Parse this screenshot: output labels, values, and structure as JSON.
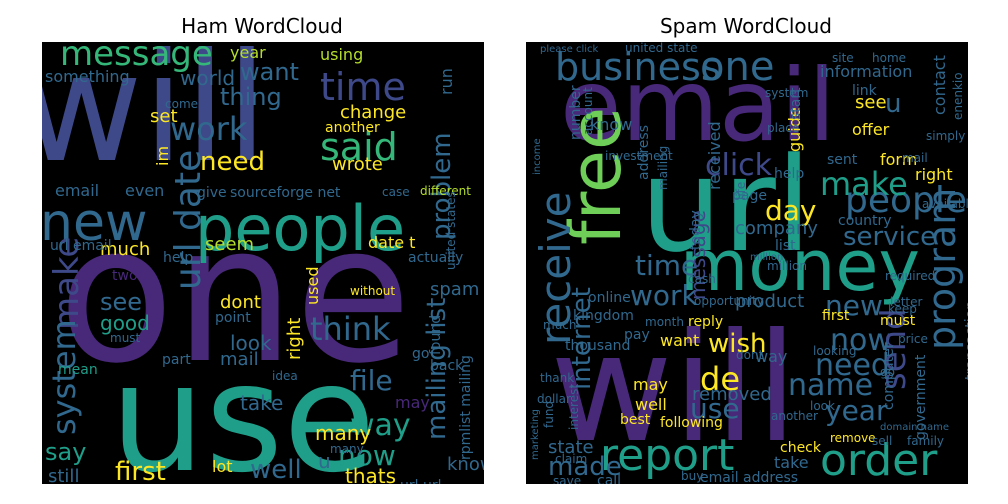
{
  "titles": {
    "ham": "Ham WordCloud",
    "spam": "Spam WordCloud"
  },
  "palette": [
    "#440154",
    "#482878",
    "#3e4989",
    "#31688e",
    "#26828e",
    "#1f9e89",
    "#35b779",
    "#6ece58",
    "#b5de2b",
    "#fde725"
  ],
  "ham_words": [
    "will",
    "one",
    "use",
    "new",
    "people",
    "message",
    "time",
    "said",
    "think",
    "work",
    "need",
    "problem",
    "mailing list",
    "url date",
    "make",
    "system",
    "first",
    "file",
    "way",
    "now",
    "see",
    "good",
    "say",
    "much",
    "seem",
    "dont",
    "look",
    "mail",
    "take",
    "well",
    "many",
    "thats",
    "still",
    "lot",
    "know",
    "spam",
    "right",
    "used",
    "want",
    "thing",
    "world",
    "year",
    "something",
    "set",
    "im",
    "wrote",
    "change",
    "another",
    "email",
    "even",
    "give",
    "sourceforge net",
    "url email",
    "date t",
    "point",
    "without",
    "must",
    "mean",
    "part",
    "url url",
    "help",
    "idea",
    "back",
    "found",
    "many",
    "actually",
    "case",
    "different",
    "united states",
    "rpmlist mailing",
    "two",
    "may",
    "u",
    "using",
    "run",
    "come",
    "go"
  ],
  "spam_words": [
    "email",
    "will",
    "url",
    "money",
    "free",
    "business",
    "one",
    "report",
    "order",
    "receive",
    "people",
    "program",
    "make",
    "click",
    "service",
    "time",
    "day",
    "new",
    "now",
    "need",
    "name",
    "send",
    "year",
    "work",
    "de",
    "use",
    "wish",
    "internet",
    "message",
    "made",
    "state",
    "product",
    "company",
    "form",
    "right",
    "information",
    "contact",
    "guide",
    "u",
    "see",
    "offer",
    "link",
    "want",
    "may",
    "well",
    "removed",
    "today",
    "received",
    "number",
    "account",
    "know",
    "online",
    "kingdom",
    "thousand",
    "transaction",
    "government",
    "computer",
    "first",
    "must",
    "reply",
    "way",
    "take",
    "email address",
    "check",
    "remove",
    "following",
    "best",
    "fund",
    "much",
    "list",
    "sent",
    "help",
    "page",
    "mail",
    "enenkio",
    "united state",
    "please click",
    "start",
    "save",
    "call",
    "thank",
    "dollar",
    "interest",
    "investment",
    "cash",
    "million",
    "country",
    "available",
    "family",
    "sell",
    "simply",
    "home",
    "site",
    "system",
    "opportunity",
    "marketing",
    "letter",
    "price",
    "month",
    "place",
    "address",
    "mailing",
    "income",
    "claim",
    "domain name",
    "look",
    "dont",
    "another",
    "keep",
    "looking",
    "million",
    "go",
    "pay",
    "buy",
    "life",
    "required"
  ]
}
